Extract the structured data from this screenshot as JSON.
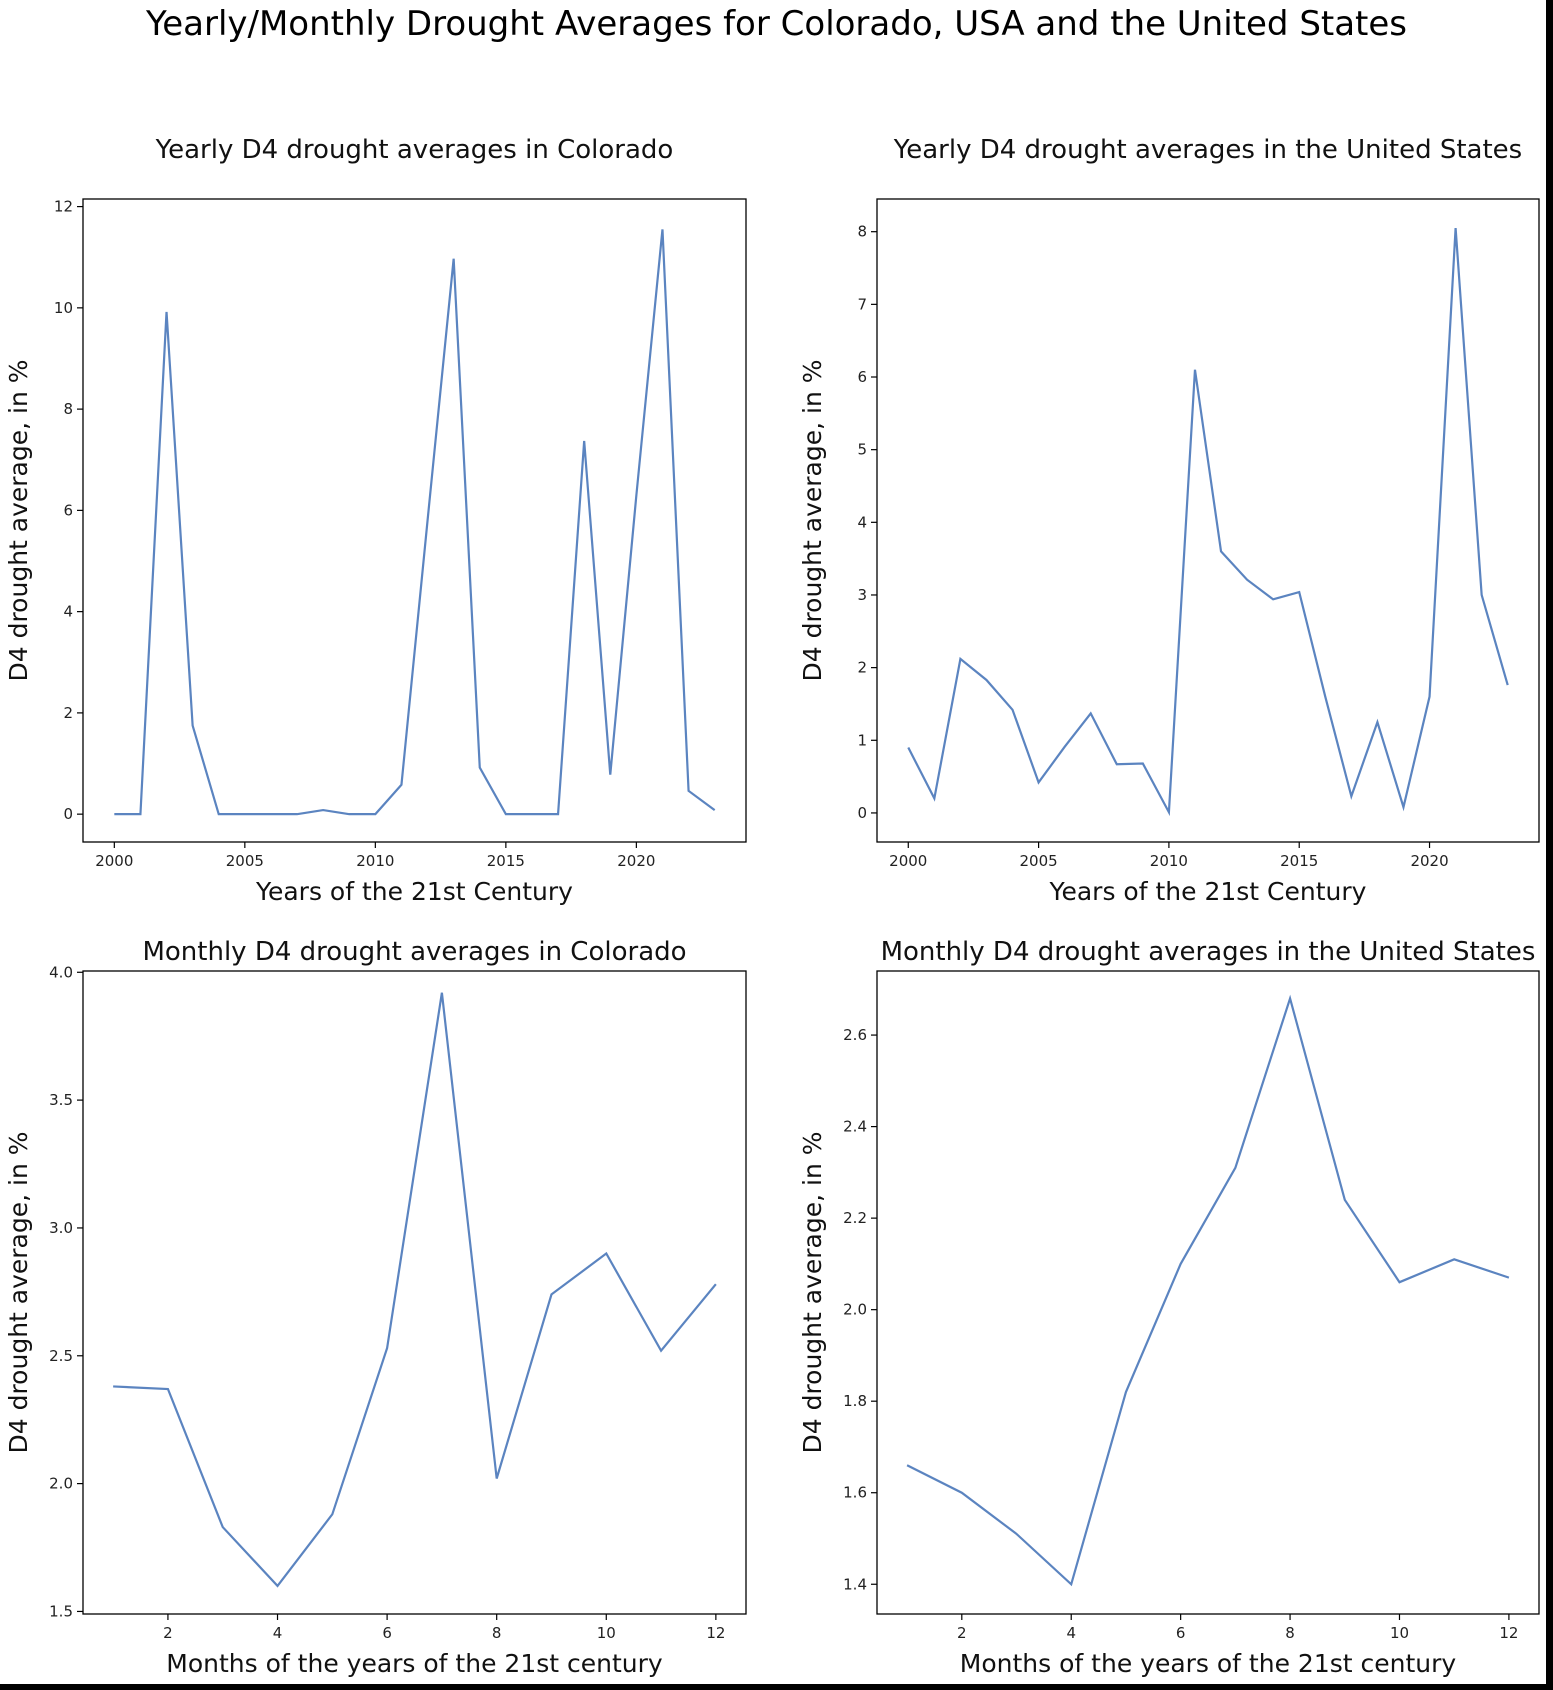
{
  "figure": {
    "suptitle": "Yearly/Monthly Drought Averages for Colorado, USA and the United States",
    "line_color": "#5b84c0"
  },
  "chart_data": [
    {
      "type": "line",
      "title": "Yearly D4 drought averages in Colorado",
      "xlabel": "Years of the 21st Century",
      "ylabel": "D4 drought average, in %",
      "xlim": [
        1998.8,
        2024.2
      ],
      "ylim": [
        -0.55,
        12.15
      ],
      "xticks": [
        2000,
        2005,
        2010,
        2015,
        2020
      ],
      "yticks": [
        0,
        2,
        4,
        6,
        8,
        10,
        12
      ],
      "x": [
        2000,
        2001,
        2002,
        2003,
        2004,
        2005,
        2006,
        2007,
        2008,
        2009,
        2010,
        2011,
        2012,
        2013,
        2014,
        2015,
        2016,
        2017,
        2018,
        2019,
        2020,
        2021,
        2022,
        2023
      ],
      "y": [
        0,
        0,
        9.92,
        1.75,
        0,
        0,
        0,
        0,
        0.08,
        0,
        0,
        0.58,
        5.8,
        10.97,
        0.92,
        0,
        0,
        0,
        7.37,
        0.78,
        6.3,
        11.55,
        0.46,
        0.08
      ],
      "grid": false
    },
    {
      "type": "line",
      "title": "Yearly D4 drought averages in the United States",
      "xlabel": "Years of the 21st Century",
      "ylabel": "D4 drought average, in %",
      "xlim": [
        1998.8,
        2024.2
      ],
      "ylim": [
        -0.4,
        8.45
      ],
      "xticks": [
        2000,
        2005,
        2010,
        2015,
        2020
      ],
      "yticks": [
        0,
        1,
        2,
        3,
        4,
        5,
        6,
        7,
        8
      ],
      "x": [
        2000,
        2001,
        2002,
        2003,
        2004,
        2005,
        2006,
        2007,
        2008,
        2009,
        2010,
        2011,
        2012,
        2013,
        2014,
        2015,
        2016,
        2017,
        2018,
        2019,
        2020,
        2021,
        2022,
        2023
      ],
      "y": [
        0.9,
        0.2,
        2.12,
        1.83,
        1.42,
        0.42,
        0.91,
        1.37,
        0.67,
        0.68,
        0.01,
        6.1,
        3.6,
        3.21,
        2.94,
        3.04,
        1.6,
        0.23,
        1.25,
        0.08,
        1.6,
        8.05,
        3.0,
        1.76
      ],
      "grid": false
    },
    {
      "type": "line",
      "title": "Monthly D4 drought averages in Colorado",
      "xlabel": "Months of the years of the 21st century",
      "ylabel": "D4 drought average, in %",
      "xlim": [
        0.45,
        12.55
      ],
      "ylim": [
        1.49,
        4.005
      ],
      "xticks": [
        2,
        4,
        6,
        8,
        10,
        12
      ],
      "yticks": [
        1.5,
        2.0,
        2.5,
        3.0,
        3.5,
        4.0
      ],
      "yticklabels": [
        "1.5",
        "2.0",
        "2.5",
        "3.0",
        "3.5",
        "4.0"
      ],
      "x": [
        1,
        2,
        3,
        4,
        5,
        6,
        7,
        8,
        9,
        10,
        11,
        12
      ],
      "y": [
        2.38,
        2.37,
        1.83,
        1.6,
        1.88,
        2.53,
        3.92,
        2.02,
        2.74,
        2.9,
        2.52,
        2.78
      ],
      "grid": false
    },
    {
      "type": "line",
      "title": "Monthly D4 drought averages in the United States",
      "xlabel": "Months of the years of the 21st century",
      "ylabel": "D4 drought average, in %",
      "xlim": [
        0.45,
        12.55
      ],
      "ylim": [
        1.335,
        2.74
      ],
      "xticks": [
        2,
        4,
        6,
        8,
        10,
        12
      ],
      "yticks": [
        1.4,
        1.6,
        1.8,
        2.0,
        2.2,
        2.4,
        2.6
      ],
      "yticklabels": [
        "1.4",
        "1.6",
        "1.8",
        "2.0",
        "2.2",
        "2.4",
        "2.6"
      ],
      "x": [
        1,
        2,
        3,
        4,
        5,
        6,
        7,
        8,
        9,
        10,
        11,
        12
      ],
      "y": [
        1.66,
        1.6,
        1.51,
        1.4,
        1.82,
        2.1,
        2.31,
        2.68,
        2.24,
        2.06,
        2.11,
        2.07
      ],
      "grid": false
    }
  ]
}
